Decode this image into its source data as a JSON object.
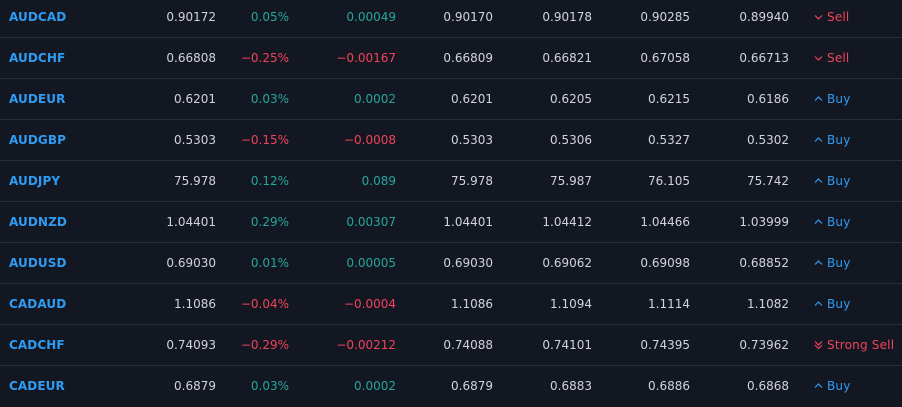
{
  "colors": {
    "background": "#131722",
    "symbol": "#2f9cf4",
    "positive": "#26a69a",
    "negative": "#f0435b",
    "buy": "#2f9cf4",
    "sell": "#f0435b",
    "divider": "#2a2e39"
  },
  "rows": [
    {
      "symbol": "AUDCAD",
      "last": "0.90172",
      "chg_pct": "0.05%",
      "chg": "0.00049",
      "bid": "0.90170",
      "ask": "0.90178",
      "high": "0.90285",
      "low": "0.89940",
      "rating": "Sell",
      "rating_type": "sell",
      "direction": "positive"
    },
    {
      "symbol": "AUDCHF",
      "last": "0.66808",
      "chg_pct": "−0.25%",
      "chg": "−0.00167",
      "bid": "0.66809",
      "ask": "0.66821",
      "high": "0.67058",
      "low": "0.66713",
      "rating": "Sell",
      "rating_type": "sell",
      "direction": "negative"
    },
    {
      "symbol": "AUDEUR",
      "last": "0.6201",
      "chg_pct": "0.03%",
      "chg": "0.0002",
      "bid": "0.6201",
      "ask": "0.6205",
      "high": "0.6215",
      "low": "0.6186",
      "rating": "Buy",
      "rating_type": "buy",
      "direction": "positive"
    },
    {
      "symbol": "AUDGBP",
      "last": "0.5303",
      "chg_pct": "−0.15%",
      "chg": "−0.0008",
      "bid": "0.5303",
      "ask": "0.5306",
      "high": "0.5327",
      "low": "0.5302",
      "rating": "Buy",
      "rating_type": "buy",
      "direction": "negative"
    },
    {
      "symbol": "AUDJPY",
      "last": "75.978",
      "chg_pct": "0.12%",
      "chg": "0.089",
      "bid": "75.978",
      "ask": "75.987",
      "high": "76.105",
      "low": "75.742",
      "rating": "Buy",
      "rating_type": "buy",
      "direction": "positive"
    },
    {
      "symbol": "AUDNZD",
      "last": "1.04401",
      "chg_pct": "0.29%",
      "chg": "0.00307",
      "bid": "1.04401",
      "ask": "1.04412",
      "high": "1.04466",
      "low": "1.03999",
      "rating": "Buy",
      "rating_type": "buy",
      "direction": "positive"
    },
    {
      "symbol": "AUDUSD",
      "last": "0.69030",
      "chg_pct": "0.01%",
      "chg": "0.00005",
      "bid": "0.69030",
      "ask": "0.69062",
      "high": "0.69098",
      "low": "0.68852",
      "rating": "Buy",
      "rating_type": "buy",
      "direction": "positive"
    },
    {
      "symbol": "CADAUD",
      "last": "1.1086",
      "chg_pct": "−0.04%",
      "chg": "−0.0004",
      "bid": "1.1086",
      "ask": "1.1094",
      "high": "1.1114",
      "low": "1.1082",
      "rating": "Buy",
      "rating_type": "buy",
      "direction": "negative"
    },
    {
      "symbol": "CADCHF",
      "last": "0.74093",
      "chg_pct": "−0.29%",
      "chg": "−0.00212",
      "bid": "0.74088",
      "ask": "0.74101",
      "high": "0.74395",
      "low": "0.73962",
      "rating": "Strong Sell",
      "rating_type": "strong-sell",
      "direction": "negative"
    },
    {
      "symbol": "CADEUR",
      "last": "0.6879",
      "chg_pct": "0.03%",
      "chg": "0.0002",
      "bid": "0.6879",
      "ask": "0.6883",
      "high": "0.6886",
      "low": "0.6868",
      "rating": "Buy",
      "rating_type": "buy",
      "direction": "positive"
    }
  ]
}
